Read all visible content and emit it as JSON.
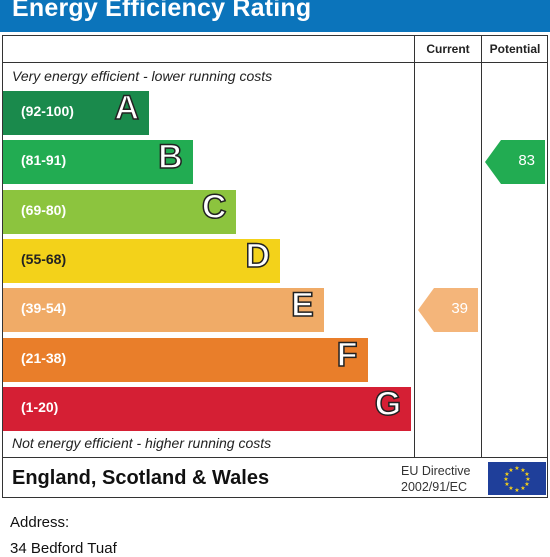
{
  "header": {
    "title": "Energy Efficiency Rating"
  },
  "columns": {
    "current": "Current",
    "potential": "Potential"
  },
  "captions": {
    "top": "Very energy efficient - lower running costs",
    "bottom": "Not energy efficient - higher running costs"
  },
  "chart_data": {
    "type": "bar",
    "title": "Energy Efficiency Rating",
    "categories": [
      "A",
      "B",
      "C",
      "D",
      "E",
      "F",
      "G"
    ],
    "ranges": [
      "(92-100)",
      "(81-91)",
      "(69-80)",
      "(55-68)",
      "(39-54)",
      "(21-38)",
      "(1-20)"
    ],
    "colors": [
      "#1a8a4c",
      "#22ac52",
      "#8cc43e",
      "#f3d21a",
      "#f0ab67",
      "#e97e2a",
      "#d51f34"
    ],
    "current": {
      "value": 39,
      "band": "E",
      "color": "#f4b57a"
    },
    "potential": {
      "value": 83,
      "band": "B",
      "color": "#22ac52"
    }
  },
  "footer": {
    "country": "England, Scotland & Wales",
    "eu_directive_line1": "EU Directive",
    "eu_directive_line2": "2002/91/EC"
  },
  "address": {
    "label": "Address:",
    "value": "34 Bedford Tuaf"
  }
}
